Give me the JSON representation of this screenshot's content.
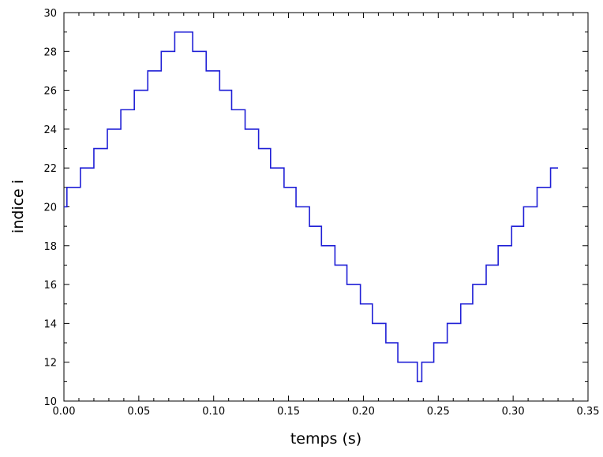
{
  "chart_data": {
    "type": "line",
    "title": "",
    "xlabel": "temps (s)",
    "ylabel": "indice i",
    "xlim": [
      0,
      0.35
    ],
    "ylim": [
      10,
      30
    ],
    "grid": false,
    "line_color": "#1f1fd6",
    "x_ticks": [
      "0.00",
      "0.05",
      "0.10",
      "0.15",
      "0.20",
      "0.25",
      "0.30",
      "0.35"
    ],
    "y_ticks": [
      "10",
      "12",
      "14",
      "16",
      "18",
      "20",
      "22",
      "24",
      "26",
      "28",
      "30"
    ],
    "series": [
      {
        "step": "post",
        "x": [
          0.0,
          0.002,
          0.011,
          0.02,
          0.029,
          0.038,
          0.047,
          0.056,
          0.065,
          0.074,
          0.086,
          0.095,
          0.104,
          0.112,
          0.121,
          0.13,
          0.138,
          0.147,
          0.155,
          0.164,
          0.172,
          0.181,
          0.189,
          0.198,
          0.206,
          0.215,
          0.223,
          0.232,
          0.236,
          0.239,
          0.247,
          0.256,
          0.265,
          0.273,
          0.282,
          0.29,
          0.299,
          0.307,
          0.316,
          0.325,
          0.33
        ],
        "y": [
          20,
          21,
          22,
          23,
          24,
          25,
          26,
          27,
          28,
          29,
          28,
          27,
          26,
          25,
          24,
          23,
          22,
          21,
          20,
          19,
          18,
          17,
          16,
          15,
          14,
          13,
          12,
          12,
          11,
          12,
          13,
          14,
          15,
          16,
          17,
          18,
          19,
          20,
          21,
          22,
          22
        ]
      }
    ]
  }
}
